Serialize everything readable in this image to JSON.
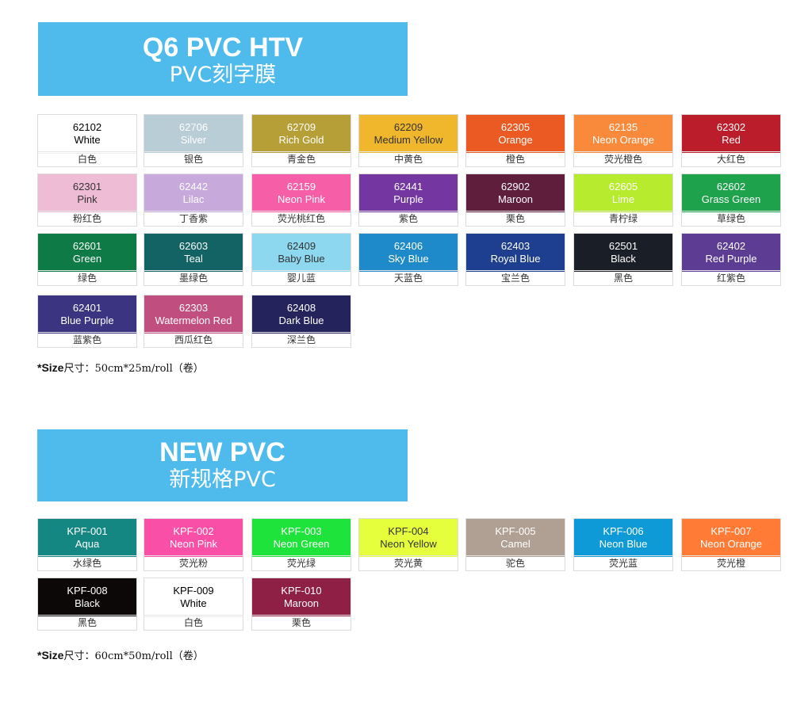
{
  "section1": {
    "title": "Q6 PVC HTV",
    "subtitle": "PVC刻字膜",
    "size_label": "*Size",
    "size_value": "尺寸：50cm*25m/roll（卷）",
    "swatches": [
      {
        "code": "62102",
        "name": "White",
        "cn": "白色",
        "color": "#ffffff",
        "text": "#000000"
      },
      {
        "code": "62706",
        "name": "Silver",
        "cn": "银色",
        "color": "#b9cdd6",
        "text": "#ffffff"
      },
      {
        "code": "62709",
        "name": "Rich Gold",
        "cn": "青金色",
        "color": "#b69f36",
        "text": "#ffffff"
      },
      {
        "code": "62209",
        "name": "Medium Yellow",
        "cn": "中黄色",
        "color": "#f0b72c",
        "text": "#333333"
      },
      {
        "code": "62305",
        "name": "Orange",
        "cn": "橙色",
        "color": "#ea5a22",
        "text": "#ffffff"
      },
      {
        "code": "62135",
        "name": "Neon Orange",
        "cn": "荧光橙色",
        "color": "#f98a3c",
        "text": "#ffffff"
      },
      {
        "code": "62302",
        "name": "Red",
        "cn": "大红色",
        "color": "#bb1d2b",
        "text": "#ffffff"
      },
      {
        "code": "62301",
        "name": "Pink",
        "cn": "粉红色",
        "color": "#efbcd6",
        "text": "#333333"
      },
      {
        "code": "62442",
        "name": "Lilac",
        "cn": "丁香紫",
        "color": "#c7a9dc",
        "text": "#ffffff"
      },
      {
        "code": "62159",
        "name": "Neon Pink",
        "cn": "荧光桃红色",
        "color": "#f65ea8",
        "text": "#ffffff"
      },
      {
        "code": "62441",
        "name": "Purple",
        "cn": "紫色",
        "color": "#7437a2",
        "text": "#ffffff"
      },
      {
        "code": "62902",
        "name": "Maroon",
        "cn": "栗色",
        "color": "#5e1e3c",
        "text": "#ffffff"
      },
      {
        "code": "62605",
        "name": "Lime",
        "cn": "青柠绿",
        "color": "#b7ec2e",
        "text": "#ffffff"
      },
      {
        "code": "62602",
        "name": "Grass Green",
        "cn": "草绿色",
        "color": "#1ea24c",
        "text": "#ffffff"
      },
      {
        "code": "62601",
        "name": "Green",
        "cn": "绿色",
        "color": "#0e7b47",
        "text": "#ffffff"
      },
      {
        "code": "62603",
        "name": "Teal",
        "cn": "墨绿色",
        "color": "#136364",
        "text": "#ffffff"
      },
      {
        "code": "62409",
        "name": "Baby Blue",
        "cn": "婴儿蓝",
        "color": "#8dd8ef",
        "text": "#333333"
      },
      {
        "code": "62406",
        "name": "Sky Blue",
        "cn": "天蓝色",
        "color": "#1f8ac9",
        "text": "#ffffff"
      },
      {
        "code": "62403",
        "name": "Royal Blue",
        "cn": "宝兰色",
        "color": "#1e3f8f",
        "text": "#ffffff"
      },
      {
        "code": "62501",
        "name": "Black",
        "cn": "黑色",
        "color": "#1a1e26",
        "text": "#ffffff"
      },
      {
        "code": "62402",
        "name": "Red Purple",
        "cn": "红紫色",
        "color": "#5d3c94",
        "text": "#ffffff"
      },
      {
        "code": "62401",
        "name": "Blue Purple",
        "cn": "蓝紫色",
        "color": "#3b3480",
        "text": "#ffffff"
      },
      {
        "code": "62303",
        "name": "Watermelon Red",
        "cn": "西瓜红色",
        "color": "#c04f7f",
        "text": "#ffffff"
      },
      {
        "code": "62408",
        "name": "Dark Blue",
        "cn": "深兰色",
        "color": "#25235c",
        "text": "#ffffff"
      }
    ]
  },
  "section2": {
    "title": "NEW PVC",
    "subtitle": "新规格PVC",
    "size_label": "*Size",
    "size_value": "尺寸：60cm*50m/roll（卷）",
    "swatches": [
      {
        "code": "KPF-001",
        "name": "Aqua",
        "cn": "水绿色",
        "color": "#148783",
        "text": "#ffffff"
      },
      {
        "code": "KPF-002",
        "name": "Neon Pink",
        "cn": "荧光粉",
        "color": "#fa4fa6",
        "text": "#ffffff"
      },
      {
        "code": "KPF-003",
        "name": "Neon Green",
        "cn": "荧光绿",
        "color": "#1ee33a",
        "text": "#ffffff"
      },
      {
        "code": "KPF-004",
        "name": "Neon Yellow",
        "cn": "荧光黄",
        "color": "#e6ff3c",
        "text": "#333333"
      },
      {
        "code": "KPF-005",
        "name": "Camel",
        "cn": "驼色",
        "color": "#b0a093",
        "text": "#ffffff"
      },
      {
        "code": "KPF-006",
        "name": "Neon Blue",
        "cn": "荧光蓝",
        "color": "#0d9ad6",
        "text": "#ffffff"
      },
      {
        "code": "KPF-007",
        "name": "Neon Orange",
        "cn": "荧光橙",
        "color": "#ff7b36",
        "text": "#ffffff"
      },
      {
        "code": "KPF-008",
        "name": "Black",
        "cn": "黑色",
        "color": "#0d0808",
        "text": "#ffffff"
      },
      {
        "code": "KPF-009",
        "name": "White",
        "cn": "白色",
        "color": "#ffffff",
        "text": "#000000"
      },
      {
        "code": "KPF-010",
        "name": "Maroon",
        "cn": "栗色",
        "color": "#8e1f45",
        "text": "#ffffff"
      }
    ]
  }
}
